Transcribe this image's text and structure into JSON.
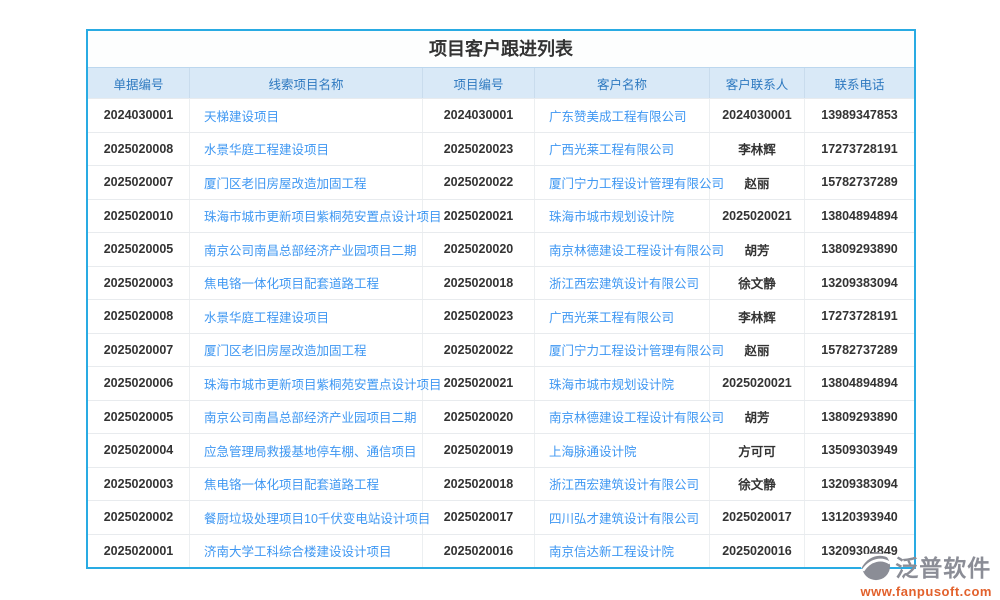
{
  "page": {
    "title": "项目客户跟进列表"
  },
  "table": {
    "columns": [
      {
        "key": "doc_no",
        "label": "单据编号",
        "align": "center",
        "type": "text"
      },
      {
        "key": "project_name",
        "label": "线索项目名称",
        "align": "left",
        "type": "link"
      },
      {
        "key": "project_no",
        "label": "项目编号",
        "align": "center",
        "type": "text"
      },
      {
        "key": "customer",
        "label": "客户名称",
        "align": "left",
        "type": "link"
      },
      {
        "key": "contact",
        "label": "客户联系人",
        "align": "center",
        "type": "text"
      },
      {
        "key": "phone",
        "label": "联系电话",
        "align": "center",
        "type": "text"
      }
    ],
    "rows": [
      {
        "doc_no": "2024030001",
        "project_name": "天梯建设项目",
        "project_no": "2024030001",
        "customer": "广东赞美成工程有限公司",
        "contact": "2024030001",
        "phone": "13989347853"
      },
      {
        "doc_no": "2025020008",
        "project_name": "水景华庭工程建设项目",
        "project_no": "2025020023",
        "customer": "广西光莱工程有限公司",
        "contact": "李林辉",
        "phone": "17273728191"
      },
      {
        "doc_no": "2025020007",
        "project_name": "厦门区老旧房屋改造加固工程",
        "project_no": "2025020022",
        "customer": "厦门宁力工程设计管理有限公司",
        "contact": "赵丽",
        "phone": "15782737289"
      },
      {
        "doc_no": "2025020010",
        "project_name": "珠海市城市更新项目紫桐苑安置点设计项目",
        "project_no": "2025020021",
        "customer": "珠海市城市规划设计院",
        "contact": "2025020021",
        "phone": "13804894894"
      },
      {
        "doc_no": "2025020005",
        "project_name": "南京公司南昌总部经济产业园项目二期",
        "project_no": "2025020020",
        "customer": "南京林德建设工程设计有限公司",
        "contact": "胡芳",
        "phone": "13809293890"
      },
      {
        "doc_no": "2025020003",
        "project_name": "焦电铬一体化项目配套道路工程",
        "project_no": "2025020018",
        "customer": "浙江西宏建筑设计有限公司",
        "contact": "徐文静",
        "phone": "13209383094"
      },
      {
        "doc_no": "2025020008",
        "project_name": "水景华庭工程建设项目",
        "project_no": "2025020023",
        "customer": "广西光莱工程有限公司",
        "contact": "李林辉",
        "phone": "17273728191"
      },
      {
        "doc_no": "2025020007",
        "project_name": "厦门区老旧房屋改造加固工程",
        "project_no": "2025020022",
        "customer": "厦门宁力工程设计管理有限公司",
        "contact": "赵丽",
        "phone": "15782737289"
      },
      {
        "doc_no": "2025020006",
        "project_name": "珠海市城市更新项目紫桐苑安置点设计项目",
        "project_no": "2025020021",
        "customer": "珠海市城市规划设计院",
        "contact": "2025020021",
        "phone": "13804894894"
      },
      {
        "doc_no": "2025020005",
        "project_name": "南京公司南昌总部经济产业园项目二期",
        "project_no": "2025020020",
        "customer": "南京林德建设工程设计有限公司",
        "contact": "胡芳",
        "phone": "13809293890"
      },
      {
        "doc_no": "2025020004",
        "project_name": "应急管理局救援基地停车棚、通信项目",
        "project_no": "2025020019",
        "customer": "上海脉通设计院",
        "contact": "方可可",
        "phone": "13509303949"
      },
      {
        "doc_no": "2025020003",
        "project_name": "焦电铬一体化项目配套道路工程",
        "project_no": "2025020018",
        "customer": "浙江西宏建筑设计有限公司",
        "contact": "徐文静",
        "phone": "13209383094"
      },
      {
        "doc_no": "2025020002",
        "project_name": "餐厨垃圾处理项目10千伏变电站设计项目",
        "project_no": "2025020017",
        "customer": "四川弘才建筑设计有限公司",
        "contact": "2025020017",
        "phone": "13120393940"
      },
      {
        "doc_no": "2025020001",
        "project_name": "济南大学工科综合楼建设设计项目",
        "project_no": "2025020016",
        "customer": "南京信达新工程设计院",
        "contact": "2025020016",
        "phone": "13209304849"
      }
    ]
  },
  "footer": {
    "brand": "泛普软件",
    "website": "www.fanpusoft.com",
    "logo_icon": "fanpu-logo-icon"
  },
  "colors": {
    "outer_border": "#29abe3",
    "header_bg": "#d9e9f7",
    "header_text": "#2e79c0",
    "link_blue": "#3e97f2",
    "body_text": "#333333",
    "brand_gray": "#8b8d96",
    "brand_orange": "#e2612c"
  }
}
